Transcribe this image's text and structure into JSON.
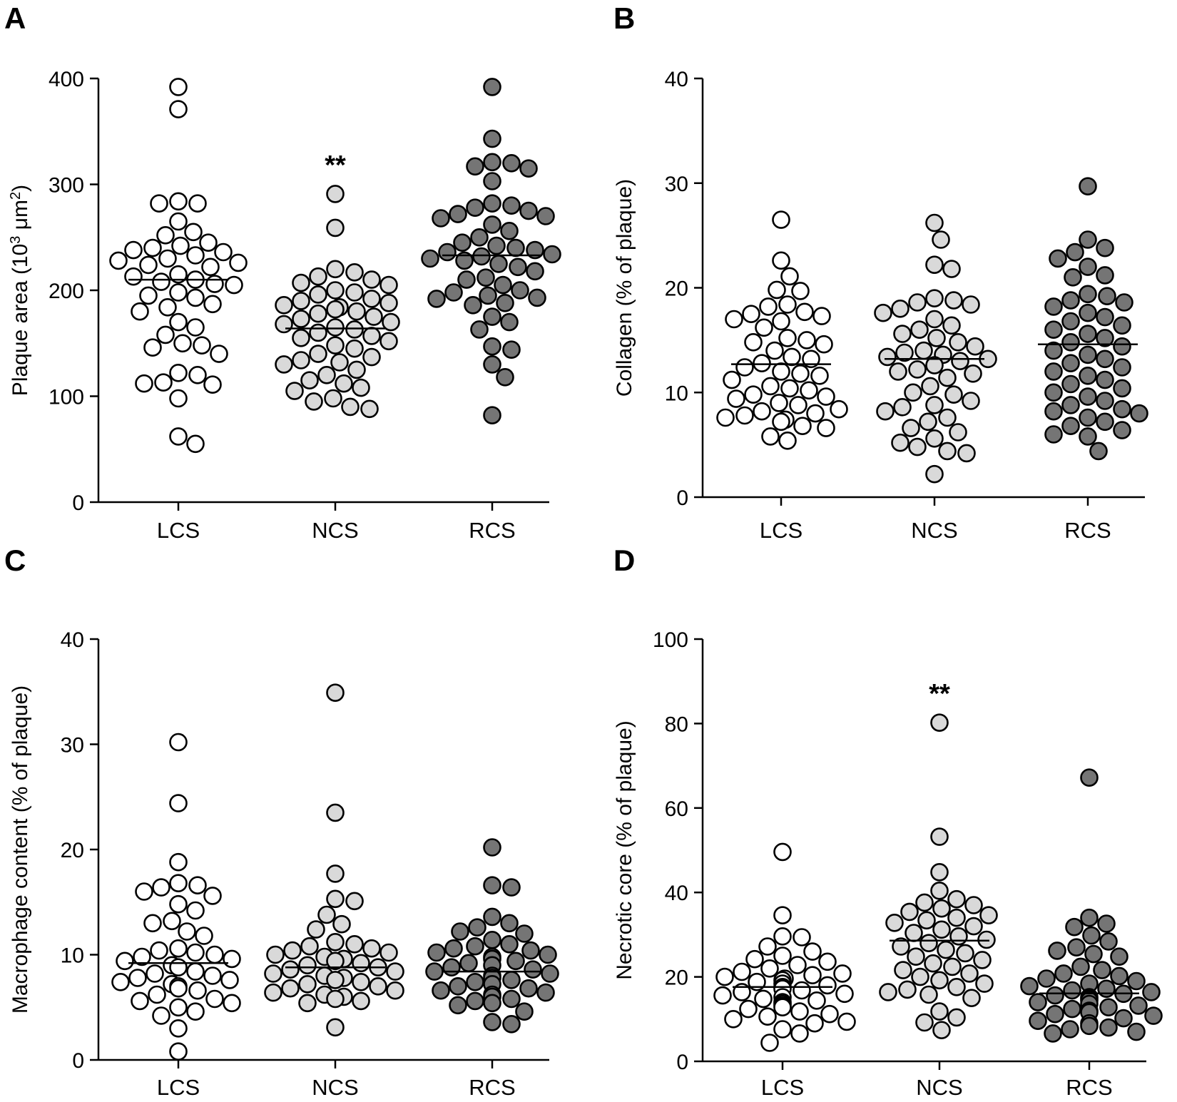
{
  "figure": {
    "groups": [
      "LCS",
      "NCS",
      "RCS"
    ]
  },
  "colors": {
    "LCS": "#ffffff",
    "NCS": "#d9d9d9",
    "RCS": "#757575"
  },
  "chart_data": [
    {
      "panel": "A",
      "type": "scatter",
      "ylabel_main": "Plaque area (10",
      "ylabel_sup": "3",
      "ylabel_mid": " μm",
      "ylabel_sup2": "2",
      "ylabel_end": ")",
      "ylim": [
        0,
        400
      ],
      "yticks": [
        0,
        100,
        200,
        300,
        400
      ],
      "categories": [
        "LCS",
        "NCS",
        "RCS"
      ],
      "significance": {
        "NCS": "**"
      },
      "series": [
        {
          "name": "LCS",
          "median": 210,
          "values": [
            392,
            371,
            284,
            282,
            282,
            265,
            255,
            252,
            245,
            242,
            240,
            238,
            236,
            233,
            230,
            228,
            226,
            224,
            222,
            215,
            213,
            210,
            208,
            206,
            205,
            198,
            195,
            193,
            187,
            184,
            180,
            170,
            165,
            158,
            150,
            148,
            146,
            140,
            122,
            120,
            113,
            112,
            111,
            98,
            62,
            55
          ]
        },
        {
          "name": "NCS",
          "median": 164,
          "values": [
            291,
            259,
            220,
            217,
            213,
            210,
            207,
            205,
            200,
            198,
            196,
            192,
            190,
            188,
            186,
            184,
            182,
            180,
            178,
            175,
            173,
            170,
            168,
            165,
            163,
            160,
            157,
            155,
            152,
            148,
            145,
            140,
            137,
            134,
            132,
            130,
            125,
            120,
            115,
            112,
            108,
            105,
            98,
            95,
            90,
            88
          ]
        },
        {
          "name": "RCS",
          "median": 233,
          "values": [
            392,
            343,
            321,
            320,
            317,
            315,
            303,
            282,
            280,
            278,
            275,
            272,
            270,
            268,
            262,
            256,
            250,
            245,
            242,
            240,
            238,
            236,
            234,
            232,
            230,
            228,
            225,
            222,
            218,
            212,
            210,
            205,
            200,
            198,
            195,
            193,
            192,
            188,
            186,
            175,
            170,
            163,
            147,
            144,
            130,
            118,
            82
          ]
        }
      ]
    },
    {
      "panel": "B",
      "type": "scatter",
      "ylabel_main": "Collagen (% of plaque)",
      "ylim": [
        0,
        40
      ],
      "yticks": [
        0,
        10,
        20,
        30,
        40
      ],
      "categories": [
        "LCS",
        "NCS",
        "RCS"
      ],
      "series": [
        {
          "name": "LCS",
          "median": 12.7,
          "values": [
            26.5,
            22.6,
            21.1,
            19.8,
            19.7,
            18.4,
            18.2,
            17.7,
            17.5,
            17.3,
            17.0,
            16.8,
            16.2,
            15.2,
            15.0,
            14.8,
            14.6,
            14.0,
            13.4,
            13.2,
            12.8,
            12.4,
            12.0,
            11.8,
            11.6,
            11.2,
            10.6,
            10.4,
            10.2,
            9.8,
            9.6,
            9.4,
            9.0,
            8.8,
            8.4,
            8.2,
            8.0,
            7.8,
            7.6,
            7.4,
            7.2,
            6.8,
            6.6,
            5.8,
            5.4
          ]
        },
        {
          "name": "NCS",
          "median": 13.2,
          "values": [
            26.2,
            24.6,
            22.2,
            21.8,
            19.0,
            18.8,
            18.6,
            18.4,
            18.0,
            17.6,
            17.0,
            16.4,
            16.0,
            15.6,
            15.2,
            14.8,
            14.4,
            14.0,
            13.8,
            13.6,
            13.4,
            13.2,
            13.0,
            12.6,
            12.2,
            12.0,
            11.8,
            11.4,
            10.6,
            10.0,
            9.8,
            9.2,
            8.8,
            8.6,
            8.2,
            7.6,
            7.2,
            6.6,
            6.2,
            5.6,
            5.2,
            4.8,
            4.4,
            4.2,
            2.2
          ]
        },
        {
          "name": "RCS",
          "median": 14.6,
          "values": [
            29.7,
            24.6,
            23.8,
            23.4,
            22.8,
            22.0,
            21.2,
            21.0,
            19.4,
            19.2,
            18.8,
            18.6,
            18.2,
            17.6,
            17.2,
            16.8,
            16.4,
            16.0,
            15.6,
            15.2,
            14.8,
            14.4,
            14.0,
            13.6,
            13.2,
            12.8,
            12.4,
            12.0,
            11.6,
            11.2,
            10.8,
            10.4,
            10.0,
            9.6,
            9.2,
            8.8,
            8.4,
            8.2,
            8.0,
            7.6,
            7.2,
            6.8,
            6.4,
            6.0,
            5.8,
            4.4
          ]
        }
      ]
    },
    {
      "panel": "C",
      "type": "scatter",
      "ylabel_main": "Macrophage content (% of plaque)",
      "ylim": [
        0,
        40
      ],
      "yticks": [
        0,
        10,
        20,
        30,
        40
      ],
      "categories": [
        "LCS",
        "NCS",
        "RCS"
      ],
      "series": [
        {
          "name": "LCS",
          "median": 9.2,
          "values": [
            30.2,
            24.4,
            18.8,
            16.8,
            16.6,
            16.4,
            16.0,
            15.6,
            14.8,
            14.2,
            13.2,
            13.0,
            12.2,
            11.8,
            10.6,
            10.4,
            10.2,
            10.0,
            9.8,
            9.6,
            9.4,
            9.0,
            8.8,
            8.4,
            8.2,
            8.0,
            7.8,
            7.6,
            7.4,
            7.2,
            7.0,
            6.8,
            6.6,
            6.2,
            5.8,
            5.6,
            5.4,
            5.0,
            4.6,
            4.2,
            3.0,
            0.8
          ]
        },
        {
          "name": "NCS",
          "median": 8.8,
          "values": [
            34.9,
            23.5,
            17.7,
            15.3,
            15.1,
            13.8,
            12.9,
            12.4,
            11.2,
            11.0,
            10.8,
            10.6,
            10.4,
            10.2,
            10.0,
            9.8,
            9.6,
            9.4,
            9.2,
            9.0,
            8.8,
            8.6,
            8.4,
            8.2,
            8.0,
            7.8,
            7.6,
            7.4,
            7.2,
            7.0,
            6.8,
            6.6,
            6.4,
            6.2,
            6.0,
            5.8,
            5.6,
            5.4,
            3.1
          ]
        },
        {
          "name": "RCS",
          "median": 8.4,
          "values": [
            20.2,
            16.6,
            16.4,
            13.6,
            13.0,
            12.6,
            12.2,
            12.0,
            11.4,
            11.0,
            10.8,
            10.6,
            10.4,
            10.2,
            10.0,
            9.8,
            9.6,
            9.4,
            9.2,
            9.0,
            8.8,
            8.6,
            8.4,
            8.2,
            8.0,
            7.8,
            7.6,
            7.4,
            7.2,
            7.0,
            6.8,
            6.6,
            6.4,
            6.2,
            6.0,
            5.8,
            5.6,
            5.4,
            5.2,
            4.6,
            3.6,
            3.4
          ]
        }
      ]
    },
    {
      "panel": "D",
      "type": "scatter",
      "ylabel_main": "Necrotic core (% of plaque)",
      "ylim": [
        0,
        100
      ],
      "yticks": [
        0,
        20,
        40,
        60,
        80,
        100
      ],
      "categories": [
        "LCS",
        "NCS",
        "RCS"
      ],
      "significance": {
        "NCS": "**"
      },
      "series": [
        {
          "name": "LCS",
          "median": 17.6,
          "values": [
            49.6,
            34.6,
            29.6,
            29.4,
            27.2,
            26.0,
            25.0,
            24.2,
            23.6,
            22.8,
            22.0,
            21.2,
            20.8,
            20.4,
            20.0,
            19.6,
            19.2,
            18.8,
            18.4,
            18.0,
            17.6,
            17.2,
            16.8,
            16.4,
            16.0,
            15.6,
            15.2,
            14.8,
            14.4,
            14.0,
            13.6,
            13.2,
            12.8,
            12.4,
            11.8,
            11.2,
            10.6,
            10.0,
            9.4,
            9.0,
            7.6,
            6.6,
            4.4
          ]
        },
        {
          "name": "NCS",
          "median": 28.6,
          "values": [
            80.2,
            53.2,
            44.8,
            40.4,
            38.4,
            37.6,
            37.0,
            36.2,
            35.4,
            34.6,
            34.0,
            33.4,
            32.8,
            32.0,
            31.2,
            30.4,
            29.6,
            28.8,
            28.0,
            27.2,
            26.4,
            25.6,
            24.8,
            24.0,
            23.2,
            22.4,
            21.6,
            20.8,
            20.0,
            19.2,
            18.4,
            17.6,
            17.0,
            16.4,
            15.8,
            15.0,
            11.8,
            10.4,
            9.2,
            7.4
          ]
        },
        {
          "name": "RCS",
          "median": 16.1,
          "values": [
            67.2,
            34.0,
            32.6,
            31.8,
            29.8,
            28.4,
            27.0,
            26.2,
            25.4,
            24.8,
            22.4,
            21.6,
            20.8,
            20.2,
            19.6,
            19.0,
            18.4,
            17.8,
            17.2,
            16.8,
            16.4,
            16.0,
            15.6,
            15.2,
            14.8,
            14.4,
            14.0,
            13.6,
            13.2,
            12.8,
            12.4,
            12.0,
            11.6,
            11.2,
            10.8,
            10.2,
            9.6,
            9.0,
            8.4,
            8.0,
            7.6,
            7.0,
            6.6
          ]
        }
      ]
    }
  ]
}
